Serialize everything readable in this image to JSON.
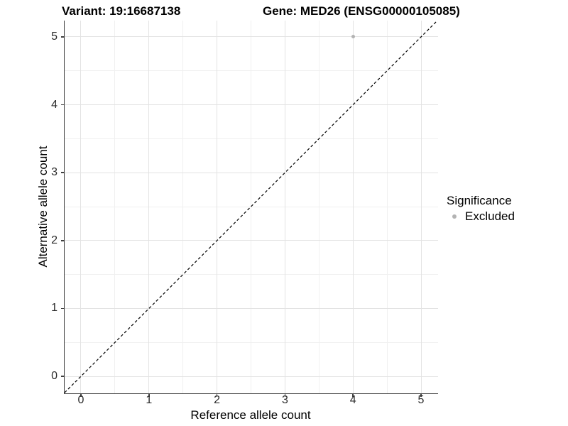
{
  "titles": {
    "left": "Variant: 19:16687138",
    "right": "Gene: MED26 (ENSG00000105085)"
  },
  "axes": {
    "x_label": "Reference allele count",
    "y_label": "Alternative allele count"
  },
  "legend": {
    "title": "Significance",
    "items": [
      {
        "label": "Excluded",
        "color": "#b3b3b3",
        "marker": "circle"
      }
    ]
  },
  "colors": {
    "axis_line": "#404040",
    "grid_major": "#e3e3e3",
    "grid_minor": "#f0f0f0",
    "identity_line": "#000000",
    "point": "#b3b3b3"
  },
  "chart_data": {
    "type": "scatter",
    "title": "Variant: 19:16687138 — Gene: MED26 (ENSG00000105085)",
    "xlabel": "Reference allele count",
    "ylabel": "Alternative allele count",
    "x_ticks": [
      0,
      1,
      2,
      3,
      4,
      5
    ],
    "y_ticks": [
      0,
      1,
      2,
      3,
      4,
      5
    ],
    "xlim": [
      -0.24,
      5.24
    ],
    "ylim": [
      -0.24,
      5.24
    ],
    "grid": "major+minor",
    "legend_position": "right",
    "series": [
      {
        "name": "Excluded",
        "color": "#b3b3b3",
        "points": [
          {
            "x": 4,
            "y": 5
          }
        ]
      }
    ],
    "reference_line": {
      "equation": "y = x",
      "style": "dashed",
      "color": "#000000"
    }
  }
}
